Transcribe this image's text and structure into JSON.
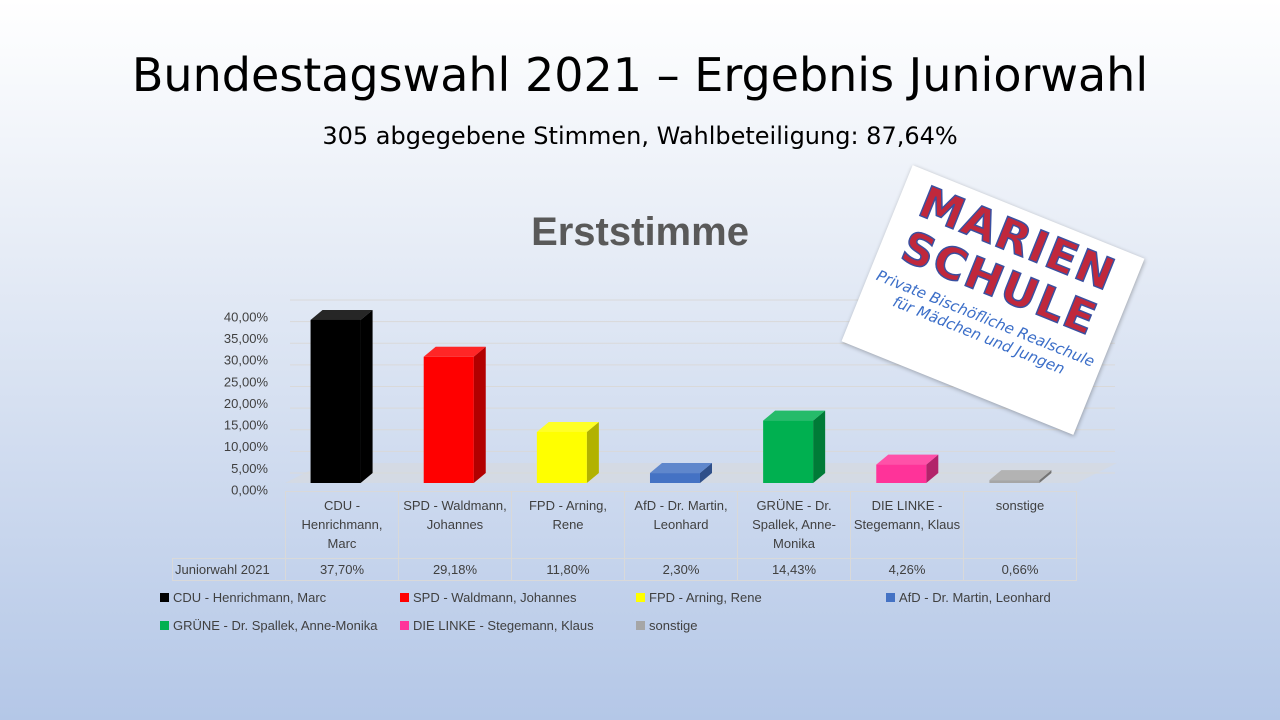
{
  "title": "Bundestagswahl 2021 – Ergebnis Juniorwahl",
  "subtitle": "305 abgegebene Stimmen, Wahlbeteiligung: 87,64%",
  "logo": {
    "lines": [
      "MARIEN",
      "SCHULE",
      "Private Bischöfliche Realschule",
      "für Mädchen und Jungen"
    ]
  },
  "chart_data": {
    "type": "bar3d",
    "title": "Erststimme",
    "categories": [
      "CDU - Henrichmann, Marc",
      "SPD - Waldmann, Johannes",
      "FPD - Arning, Rene",
      "AfD - Dr. Martin, Leonhard",
      "GRÜNE - Dr. Spallek, Anne-Monika",
      "DIE LINKE - Stegemann, Klaus",
      "sonstige"
    ],
    "series": [
      {
        "name": "Juniorwahl 2021",
        "colors": [
          "#000000",
          "#ff0000",
          "#ffff00",
          "#4472c4",
          "#00b050",
          "#ff3399",
          "#a6a6a6"
        ],
        "values": [
          37.7,
          29.18,
          11.8,
          2.3,
          14.43,
          4.26,
          0.66
        ],
        "value_labels": [
          "37,70%",
          "29,18%",
          "11,80%",
          "2,30%",
          "14,43%",
          "4,26%",
          "0,66%"
        ]
      }
    ],
    "ylim": [
      0,
      40
    ],
    "yticks": [
      {
        "value": 0,
        "label": "0,00%"
      },
      {
        "value": 5,
        "label": "5,00%"
      },
      {
        "value": 10,
        "label": "10,00%"
      },
      {
        "value": 15,
        "label": "15,00%"
      },
      {
        "value": 20,
        "label": "20,00%"
      },
      {
        "value": 25,
        "label": "25,00%"
      },
      {
        "value": 30,
        "label": "30,00%"
      },
      {
        "value": 35,
        "label": "35,00%"
      },
      {
        "value": 40,
        "label": "40,00%"
      }
    ],
    "grid": true
  }
}
